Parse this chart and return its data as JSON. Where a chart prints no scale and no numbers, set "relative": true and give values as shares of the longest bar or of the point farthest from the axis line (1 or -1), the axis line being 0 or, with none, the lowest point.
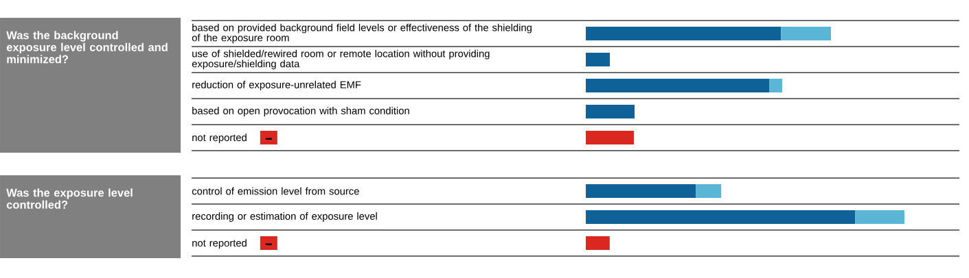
{
  "chart_data": [
    {
      "type": "bar",
      "orientation": "horizontal",
      "stacked": true,
      "relative": true,
      "title": "Was the background exposure level controlled and minimized?",
      "categories": [
        "based on provided background field levels or effectiveness of the shielding of the exposure room",
        "use of shielded/rewired room or remote location without providing exposure/shielding data",
        "reduction of exposure-unrelated EMF",
        "based on open provocation with sham condition",
        "not reported"
      ],
      "series": [
        {
          "color": "#0f6298",
          "colors": [
            "#0f6298",
            "#0f6298",
            "#0f6298",
            "#0f6298",
            "#da2720"
          ],
          "values": [
            0.796,
            0.098,
            0.748,
            0.199,
            0.196
          ]
        },
        {
          "color": "#5ab5d6",
          "values": [
            0.204,
            null,
            0.053,
            null,
            null
          ]
        }
      ]
    },
    {
      "type": "bar",
      "orientation": "horizontal",
      "stacked": true,
      "relative": true,
      "title": "Was the exposure level controlled?",
      "categories": [
        "control of emission level from source",
        "recording or estimation of exposure level",
        "not reported"
      ],
      "series": [
        {
          "color": "#0f6298",
          "colors": [
            "#0f6298",
            "#0f6298",
            "#da2720"
          ],
          "values": [
            0.345,
            0.845,
            0.075
          ]
        },
        {
          "color": "#5ab5d6",
          "values": [
            0.08,
            0.155,
            null
          ]
        }
      ]
    }
  ]
}
